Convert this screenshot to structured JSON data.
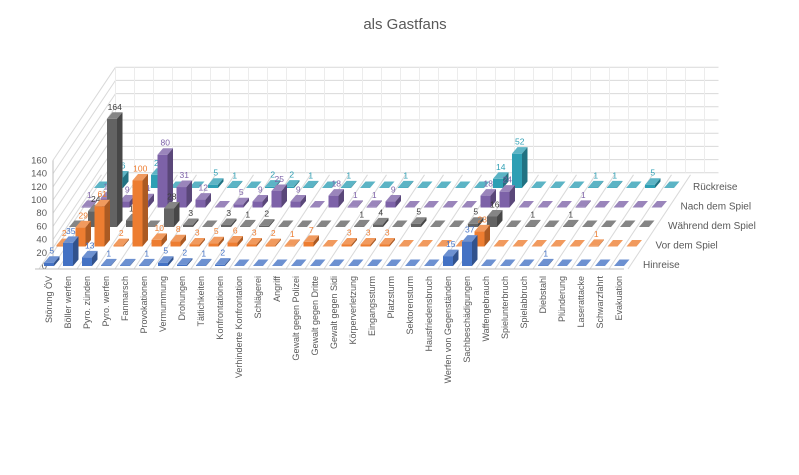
{
  "title": "als Gastfans",
  "chart_data": {
    "type": "bar",
    "variant": "3d-bar",
    "title": "als Gastfans",
    "grid": true,
    "legend_position": "right-depth-axis",
    "value_axis": {
      "min": 0,
      "max": 160,
      "step": 20,
      "ticks": [
        "0",
        "20",
        "40",
        "60",
        "80",
        "100",
        "120",
        "140",
        "160"
      ]
    },
    "categories": [
      "Störung ÖV",
      "Böller werfen",
      "Pyro. zünden",
      "Pyro. werfen",
      "Fanmarsch",
      "Provokationen",
      "Vermummung",
      "Drohungen",
      "Tätlichkeiten",
      "Konfrontationen",
      "Verhinderte Konfrontation",
      "Schlägerei",
      "Angriff",
      "Gewalt gegen Polizei",
      "Gewalt gegen Dritte",
      "Gewalt gegen Sidi",
      "Körperverletzung",
      "Eingangssturm",
      "Platzsturm",
      "Sektorensturm",
      "Hausfriedensbruch",
      "Werfen von Gegenständen",
      "Sachbeschädigungen",
      "Waffengebrauch",
      "Spielunterbruch",
      "Spielabbruch",
      "Diebstahl",
      "Plünderung",
      "Laserattacke",
      "Schwarzfahrt",
      "Evakuation"
    ],
    "series": [
      {
        "name": "Hinreise",
        "color": "#4472C4",
        "label_color": "#4472C4",
        "values": [
          5,
          35,
          13,
          1,
          1,
          1,
          5,
          2,
          1,
          2,
          0,
          0,
          0,
          0,
          0,
          0,
          0,
          0,
          0,
          0,
          0,
          15,
          37,
          0,
          0,
          0,
          1,
          0,
          0,
          0,
          0
        ],
        "hidden_labels": [
          4
        ]
      },
      {
        "name": "Vor dem Spiel",
        "color": "#ED7D31",
        "label_color": "#ED7D31",
        "values": [
          2,
          29,
          61,
          2,
          100,
          10,
          8,
          3,
          5,
          6,
          3,
          2,
          1,
          7,
          0,
          3,
          3,
          3,
          0,
          0,
          0,
          0,
          23,
          0,
          0,
          0,
          0,
          0,
          1,
          0,
          0
        ],
        "hidden_labels": []
      },
      {
        "name": "Während dem Spiel",
        "color": "#636363",
        "label_color": "#3b3b3b",
        "values": [
          0,
          24,
          164,
          10,
          0,
          28,
          3,
          0,
          3,
          1,
          2,
          0,
          0,
          0,
          0,
          1,
          4,
          0,
          5,
          0,
          0,
          5,
          16,
          0,
          1,
          0,
          1,
          0,
          0,
          0,
          0
        ],
        "hidden_labels": []
      },
      {
        "name": "Nach dem Spiel",
        "color": "#7D62A8",
        "label_color": "#7D62A8",
        "values": [
          1,
          14,
          9,
          11,
          80,
          31,
          12,
          0,
          5,
          9,
          25,
          9,
          0,
          18,
          1,
          1,
          9,
          0,
          0,
          0,
          0,
          18,
          24,
          0,
          0,
          0,
          1,
          0,
          0,
          0,
          0
        ],
        "hidden_labels": []
      },
      {
        "name": "Rückreise",
        "color": "#2E9FB4",
        "label_color": "#2E9FB4",
        "values": [
          0,
          16,
          0,
          20,
          0,
          0,
          5,
          1,
          0,
          2,
          2,
          1,
          0,
          1,
          0,
          0,
          1,
          0,
          0,
          0,
          0,
          14,
          52,
          0,
          0,
          0,
          1,
          1,
          0,
          5,
          0
        ],
        "hidden_labels": []
      }
    ]
  }
}
